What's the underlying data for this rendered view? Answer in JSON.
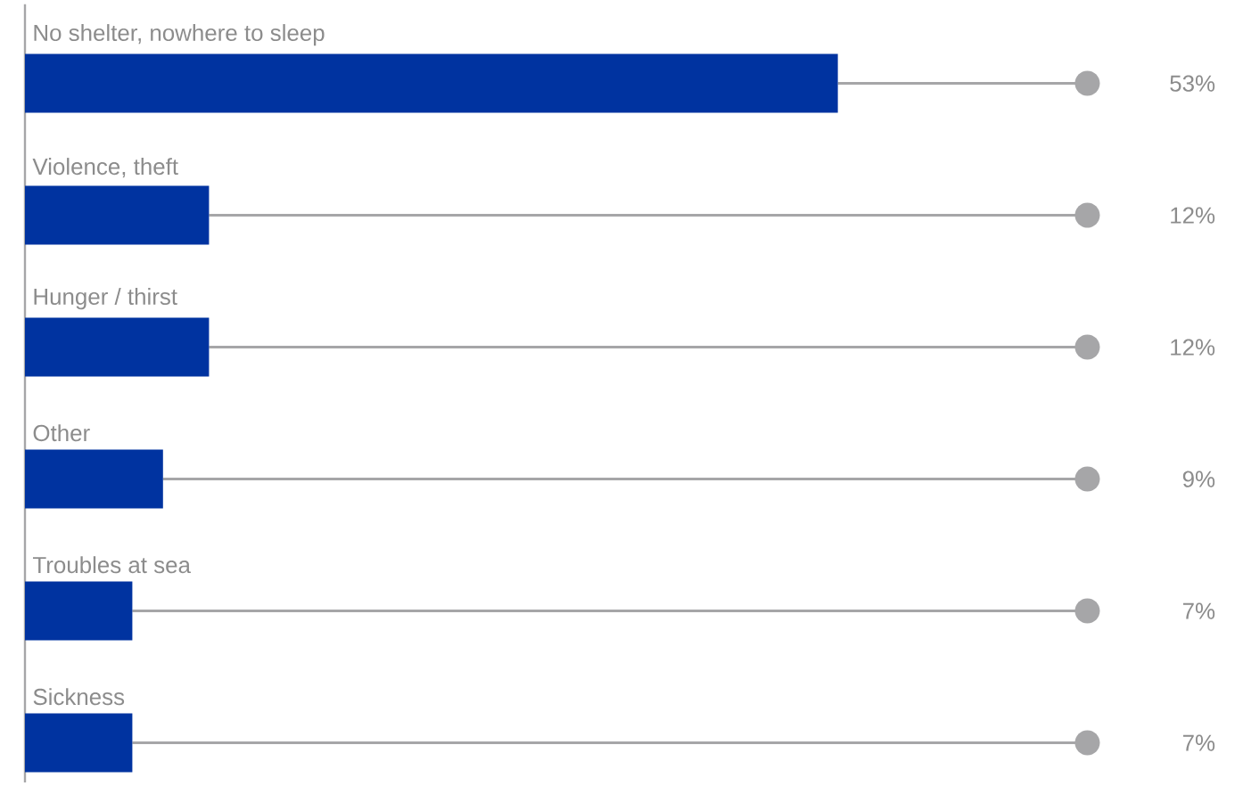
{
  "chart_data": {
    "type": "bar",
    "orientation": "horizontal",
    "categories": [
      "No shelter, nowhere to sleep",
      "Violence, theft",
      "Hunger / thirst",
      "Other",
      "Troubles at sea",
      "Sickness"
    ],
    "values": [
      53,
      12,
      12,
      9,
      7,
      7
    ],
    "value_labels": [
      "53%",
      "12%",
      "12%",
      "9%",
      "7%",
      "7%"
    ],
    "color": "#0033a0"
  }
}
